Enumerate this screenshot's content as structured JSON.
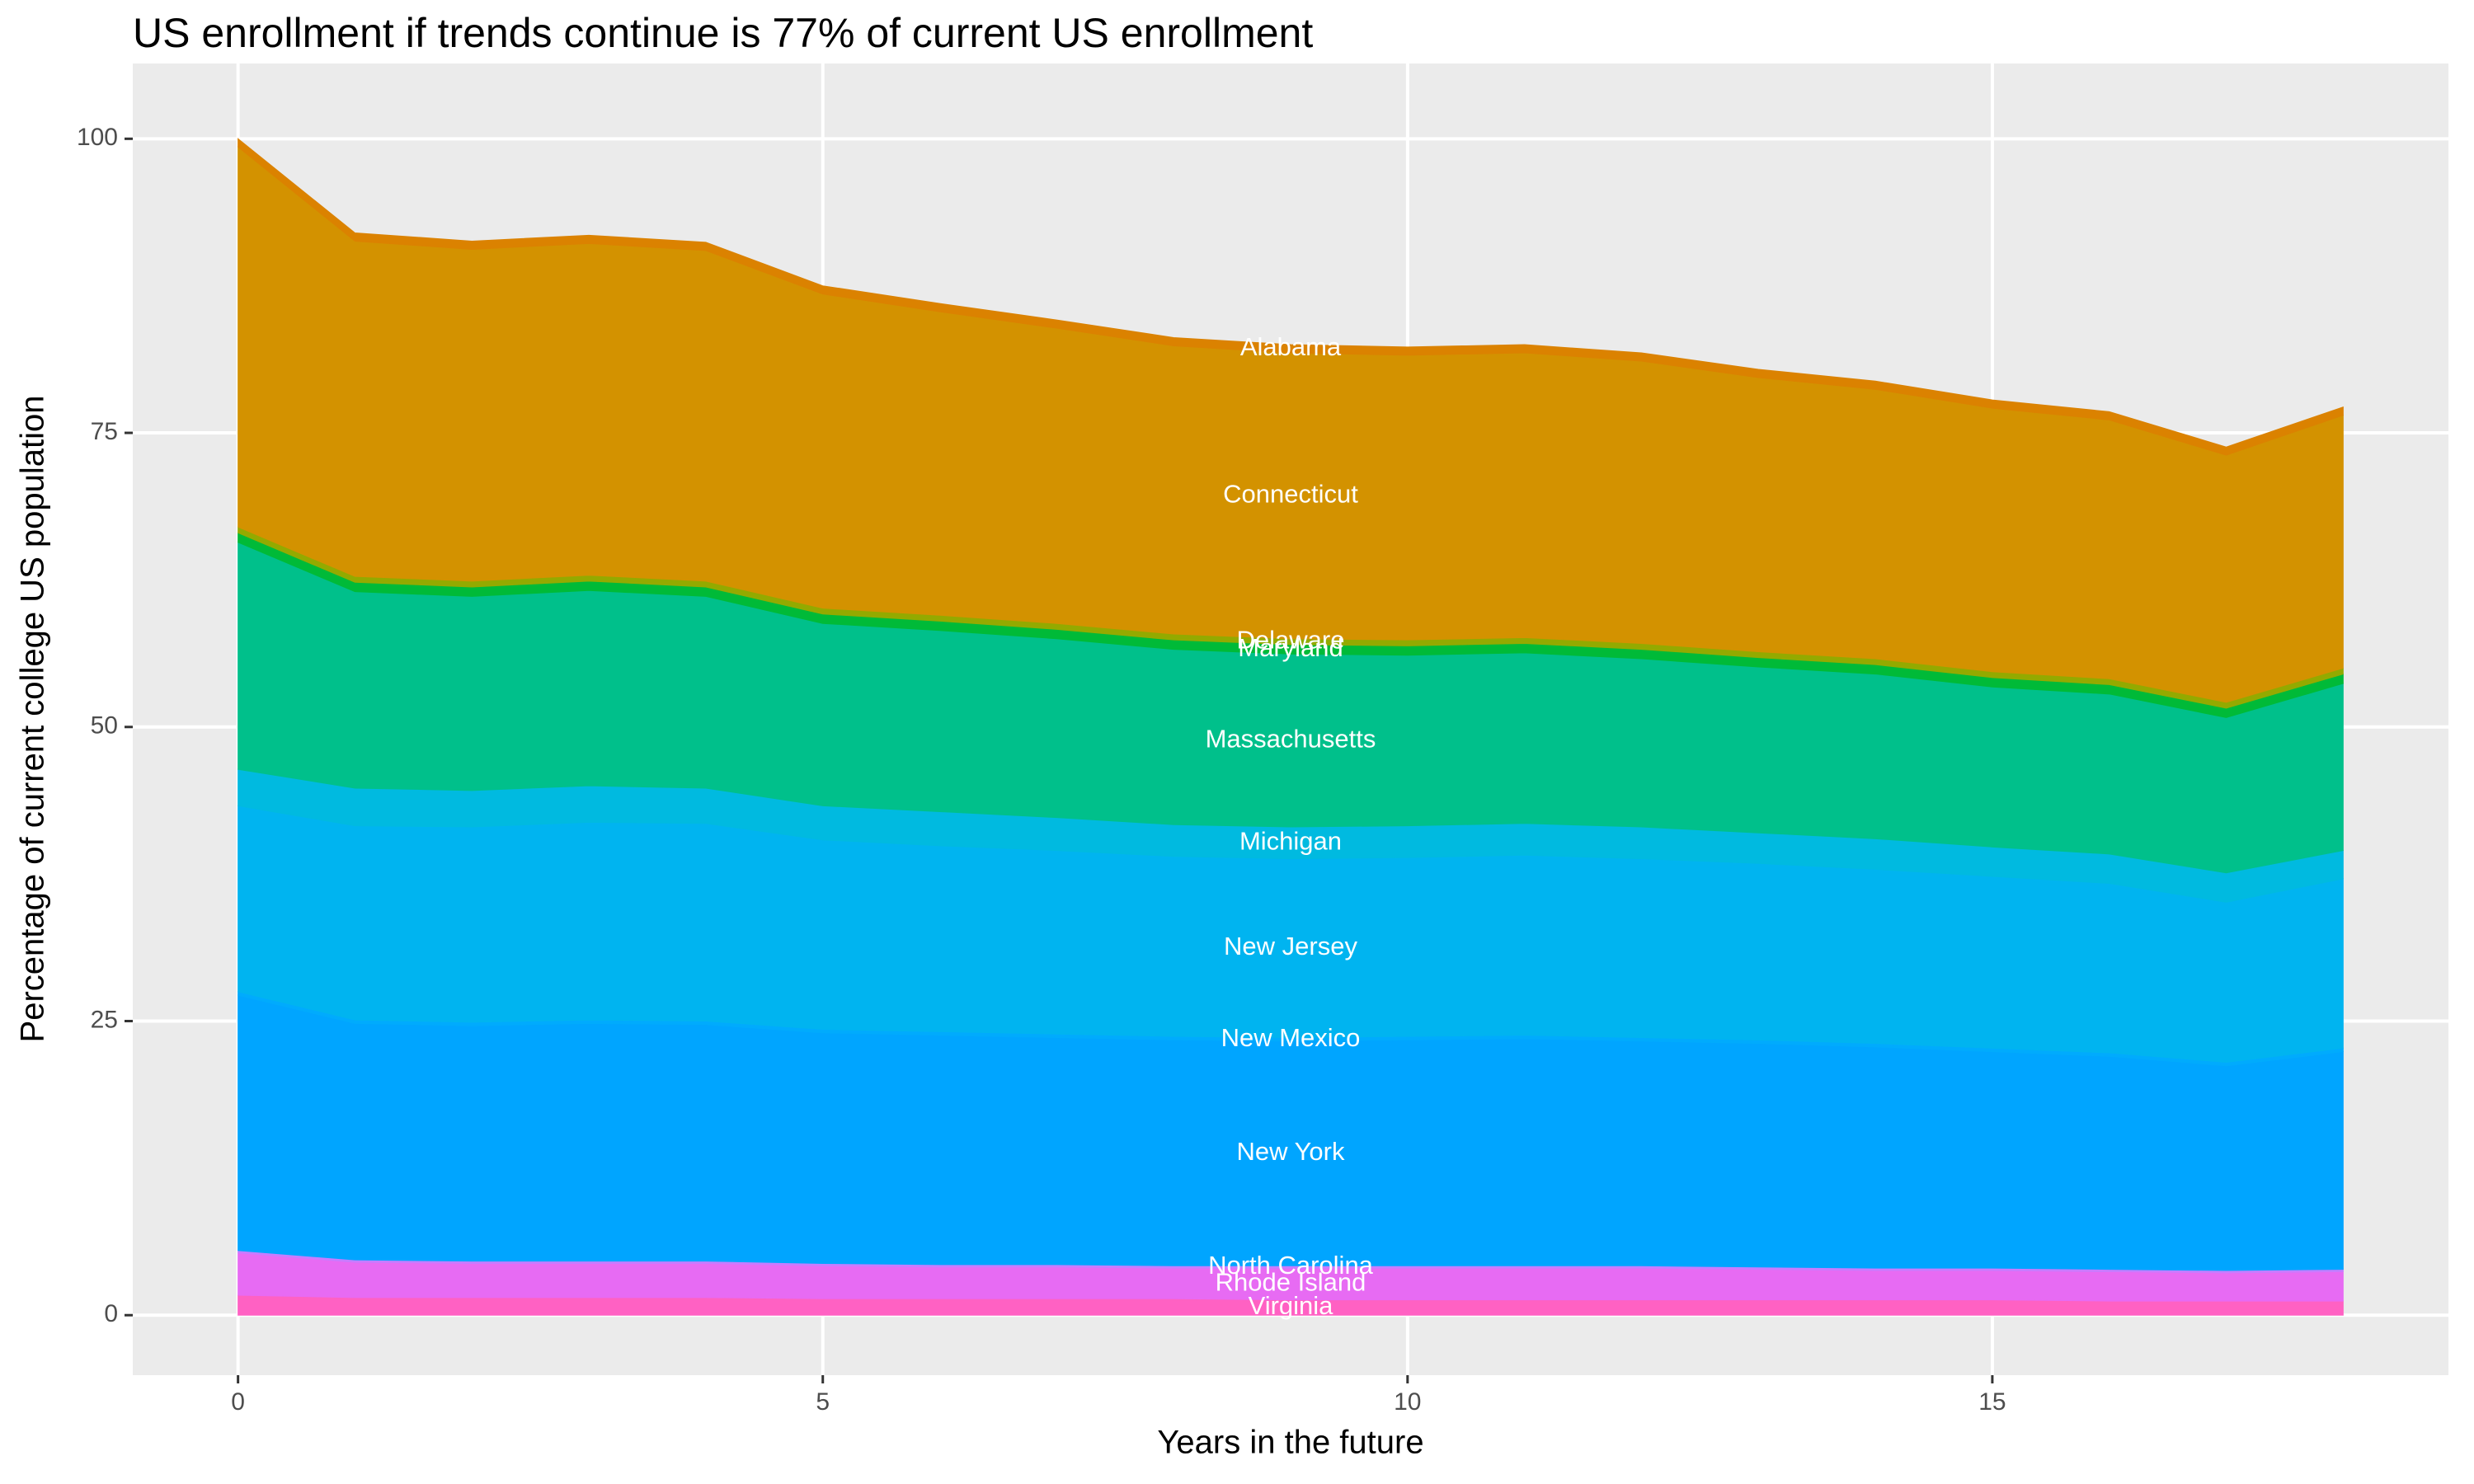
{
  "chart_data": {
    "type": "stacked_area",
    "title": "US enrollment if trends continue is 77% of current US enrollment",
    "x_label": "Years in the future",
    "y_label": "Percentage of current college US population",
    "x": [
      0,
      1,
      2,
      3,
      4,
      5,
      6,
      7,
      8,
      9,
      10,
      11,
      12,
      13,
      14,
      15,
      16,
      17,
      18
    ],
    "xlim": [
      -0.9,
      18.9
    ],
    "xticks": [
      0,
      5,
      10,
      15
    ],
    "ylim": [
      -5.1,
      106.4
    ],
    "yticks": [
      0,
      25,
      50,
      75,
      100
    ],
    "grid": true,
    "series": [
      {
        "name": "Virginia",
        "color": "#FF61C3",
        "values": [
          1.7,
          1.5,
          1.5,
          1.5,
          1.5,
          1.4,
          1.4,
          1.4,
          1.4,
          1.3,
          1.3,
          1.3,
          1.3,
          1.3,
          1.3,
          1.3,
          1.2,
          1.2,
          1.2
        ]
      },
      {
        "name": "Rhode Island",
        "color": "#E76BF3",
        "values": [
          3.6,
          3.0,
          2.9,
          2.9,
          2.9,
          2.8,
          2.7,
          2.7,
          2.6,
          2.7,
          2.7,
          2.7,
          2.7,
          2.6,
          2.5,
          2.5,
          2.5,
          2.4,
          2.5
        ]
      },
      {
        "name": "North Carolina",
        "color": "#C77CFF",
        "values": [
          0.2,
          0.2,
          0.2,
          0.2,
          0.2,
          0.2,
          0.2,
          0.2,
          0.2,
          0.2,
          0.2,
          0.2,
          0.2,
          0.2,
          0.2,
          0.2,
          0.2,
          0.2,
          0.2
        ]
      },
      {
        "name": "New York",
        "color": "#00A5FF",
        "values": [
          21.7,
          20.1,
          20.0,
          20.2,
          20.1,
          19.6,
          19.5,
          19.3,
          19.2,
          19.1,
          19.2,
          19.3,
          19.1,
          19.0,
          18.8,
          18.4,
          18.1,
          17.4,
          18.5
        ]
      },
      {
        "name": "New Mexico",
        "color": "#00ABFD",
        "values": [
          0.3,
          0.3,
          0.3,
          0.3,
          0.3,
          0.3,
          0.3,
          0.3,
          0.3,
          0.3,
          0.3,
          0.3,
          0.3,
          0.3,
          0.3,
          0.3,
          0.3,
          0.3,
          0.3
        ]
      },
      {
        "name": "New Jersey",
        "color": "#00B4F0",
        "values": [
          15.8,
          16.5,
          16.6,
          16.8,
          16.8,
          16.1,
          15.8,
          15.6,
          15.3,
          15.2,
          15.2,
          15.3,
          15.2,
          15.0,
          14.8,
          14.6,
          14.4,
          13.6,
          14.4
        ]
      },
      {
        "name": "Michigan",
        "color": "#00BAE0",
        "values": [
          3.1,
          3.2,
          3.1,
          3.1,
          3.0,
          2.9,
          2.9,
          2.8,
          2.7,
          2.7,
          2.7,
          2.7,
          2.7,
          2.6,
          2.6,
          2.5,
          2.5,
          2.5,
          2.4
        ]
      },
      {
        "name": "Massachusetts",
        "color": "#00C08B",
        "values": [
          19.3,
          16.7,
          16.5,
          16.6,
          16.3,
          15.5,
          15.4,
          15.2,
          14.9,
          14.7,
          14.5,
          14.5,
          14.3,
          14.1,
          14.0,
          13.6,
          13.6,
          13.2,
          14.2
        ]
      },
      {
        "name": "Maryland",
        "color": "#00BA38",
        "values": [
          0.8,
          0.8,
          0.8,
          0.8,
          0.8,
          0.8,
          0.8,
          0.8,
          0.8,
          0.8,
          0.8,
          0.8,
          0.8,
          0.8,
          0.8,
          0.8,
          0.8,
          0.8,
          0.8
        ]
      },
      {
        "name": "Delaware",
        "color": "#93AA00",
        "values": [
          0.5,
          0.5,
          0.5,
          0.5,
          0.5,
          0.5,
          0.5,
          0.5,
          0.5,
          0.5,
          0.5,
          0.5,
          0.5,
          0.5,
          0.5,
          0.5,
          0.5,
          0.5,
          0.5
        ]
      },
      {
        "name": "Connecticut",
        "color": "#D39200",
        "values": [
          32.3,
          28.5,
          28.2,
          28.2,
          28.1,
          26.7,
          25.8,
          25.1,
          24.5,
          24.3,
          24.2,
          24.2,
          24.0,
          23.3,
          22.9,
          22.4,
          22.0,
          21.0,
          21.5
        ]
      },
      {
        "name": "Alabama",
        "color": "#DB8200",
        "values": [
          0.7,
          0.7,
          0.7,
          0.7,
          0.7,
          0.7,
          0.7,
          0.7,
          0.7,
          0.7,
          0.7,
          0.7,
          0.7,
          0.7,
          0.7,
          0.7,
          0.7,
          0.7,
          0.7
        ]
      }
    ]
  }
}
